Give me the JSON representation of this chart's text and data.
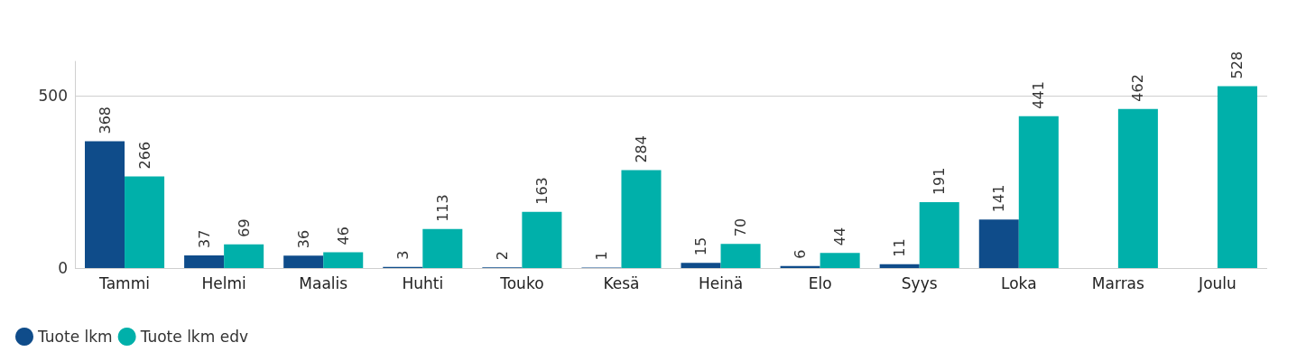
{
  "chart_data": {
    "type": "bar",
    "categories": [
      "Tammi",
      "Helmi",
      "Maalis",
      "Huhti",
      "Touko",
      "Kesä",
      "Heinä",
      "Elo",
      "Syys",
      "Loka",
      "Marras",
      "Joulu"
    ],
    "series": [
      {
        "name": "Tuote lkm",
        "color": "#0f4c8a",
        "values": [
          368,
          37,
          36,
          3,
          2,
          1,
          15,
          6,
          11,
          141,
          null,
          null
        ]
      },
      {
        "name": "Tuote lkm edv",
        "color": "#00b0aa",
        "values": [
          266,
          69,
          46,
          113,
          163,
          284,
          70,
          44,
          191,
          441,
          462,
          528
        ]
      }
    ],
    "ylim": [
      0,
      600
    ],
    "yticks": [
      0,
      500
    ],
    "grid": "y",
    "legend": "bottom left",
    "data_labels": true
  }
}
